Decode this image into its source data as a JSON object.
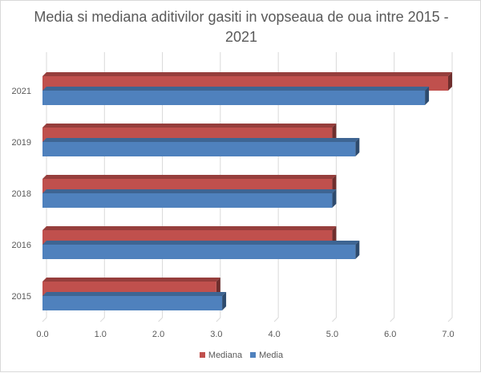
{
  "chart_data": {
    "type": "bar",
    "orientation": "horizontal",
    "three_d": true,
    "title": "Media si mediana aditivilor gasiti in vopseaua de oua intre 2015 - 2021",
    "categories": [
      "2015",
      "2016",
      "2018",
      "2019",
      "2021"
    ],
    "series": [
      {
        "name": "Mediana",
        "color": "#c0504d",
        "values": [
          3.0,
          5.0,
          5.0,
          5.0,
          7.0
        ]
      },
      {
        "name": "Media",
        "color": "#4f81bd",
        "values": [
          3.1,
          5.4,
          5.0,
          5.4,
          6.6
        ]
      }
    ],
    "xlim": [
      0,
      7
    ],
    "xticks": [
      "0.0",
      "1.0",
      "2.0",
      "3.0",
      "4.0",
      "5.0",
      "6.0",
      "7.0"
    ],
    "grid": true,
    "legend": "bottom"
  }
}
